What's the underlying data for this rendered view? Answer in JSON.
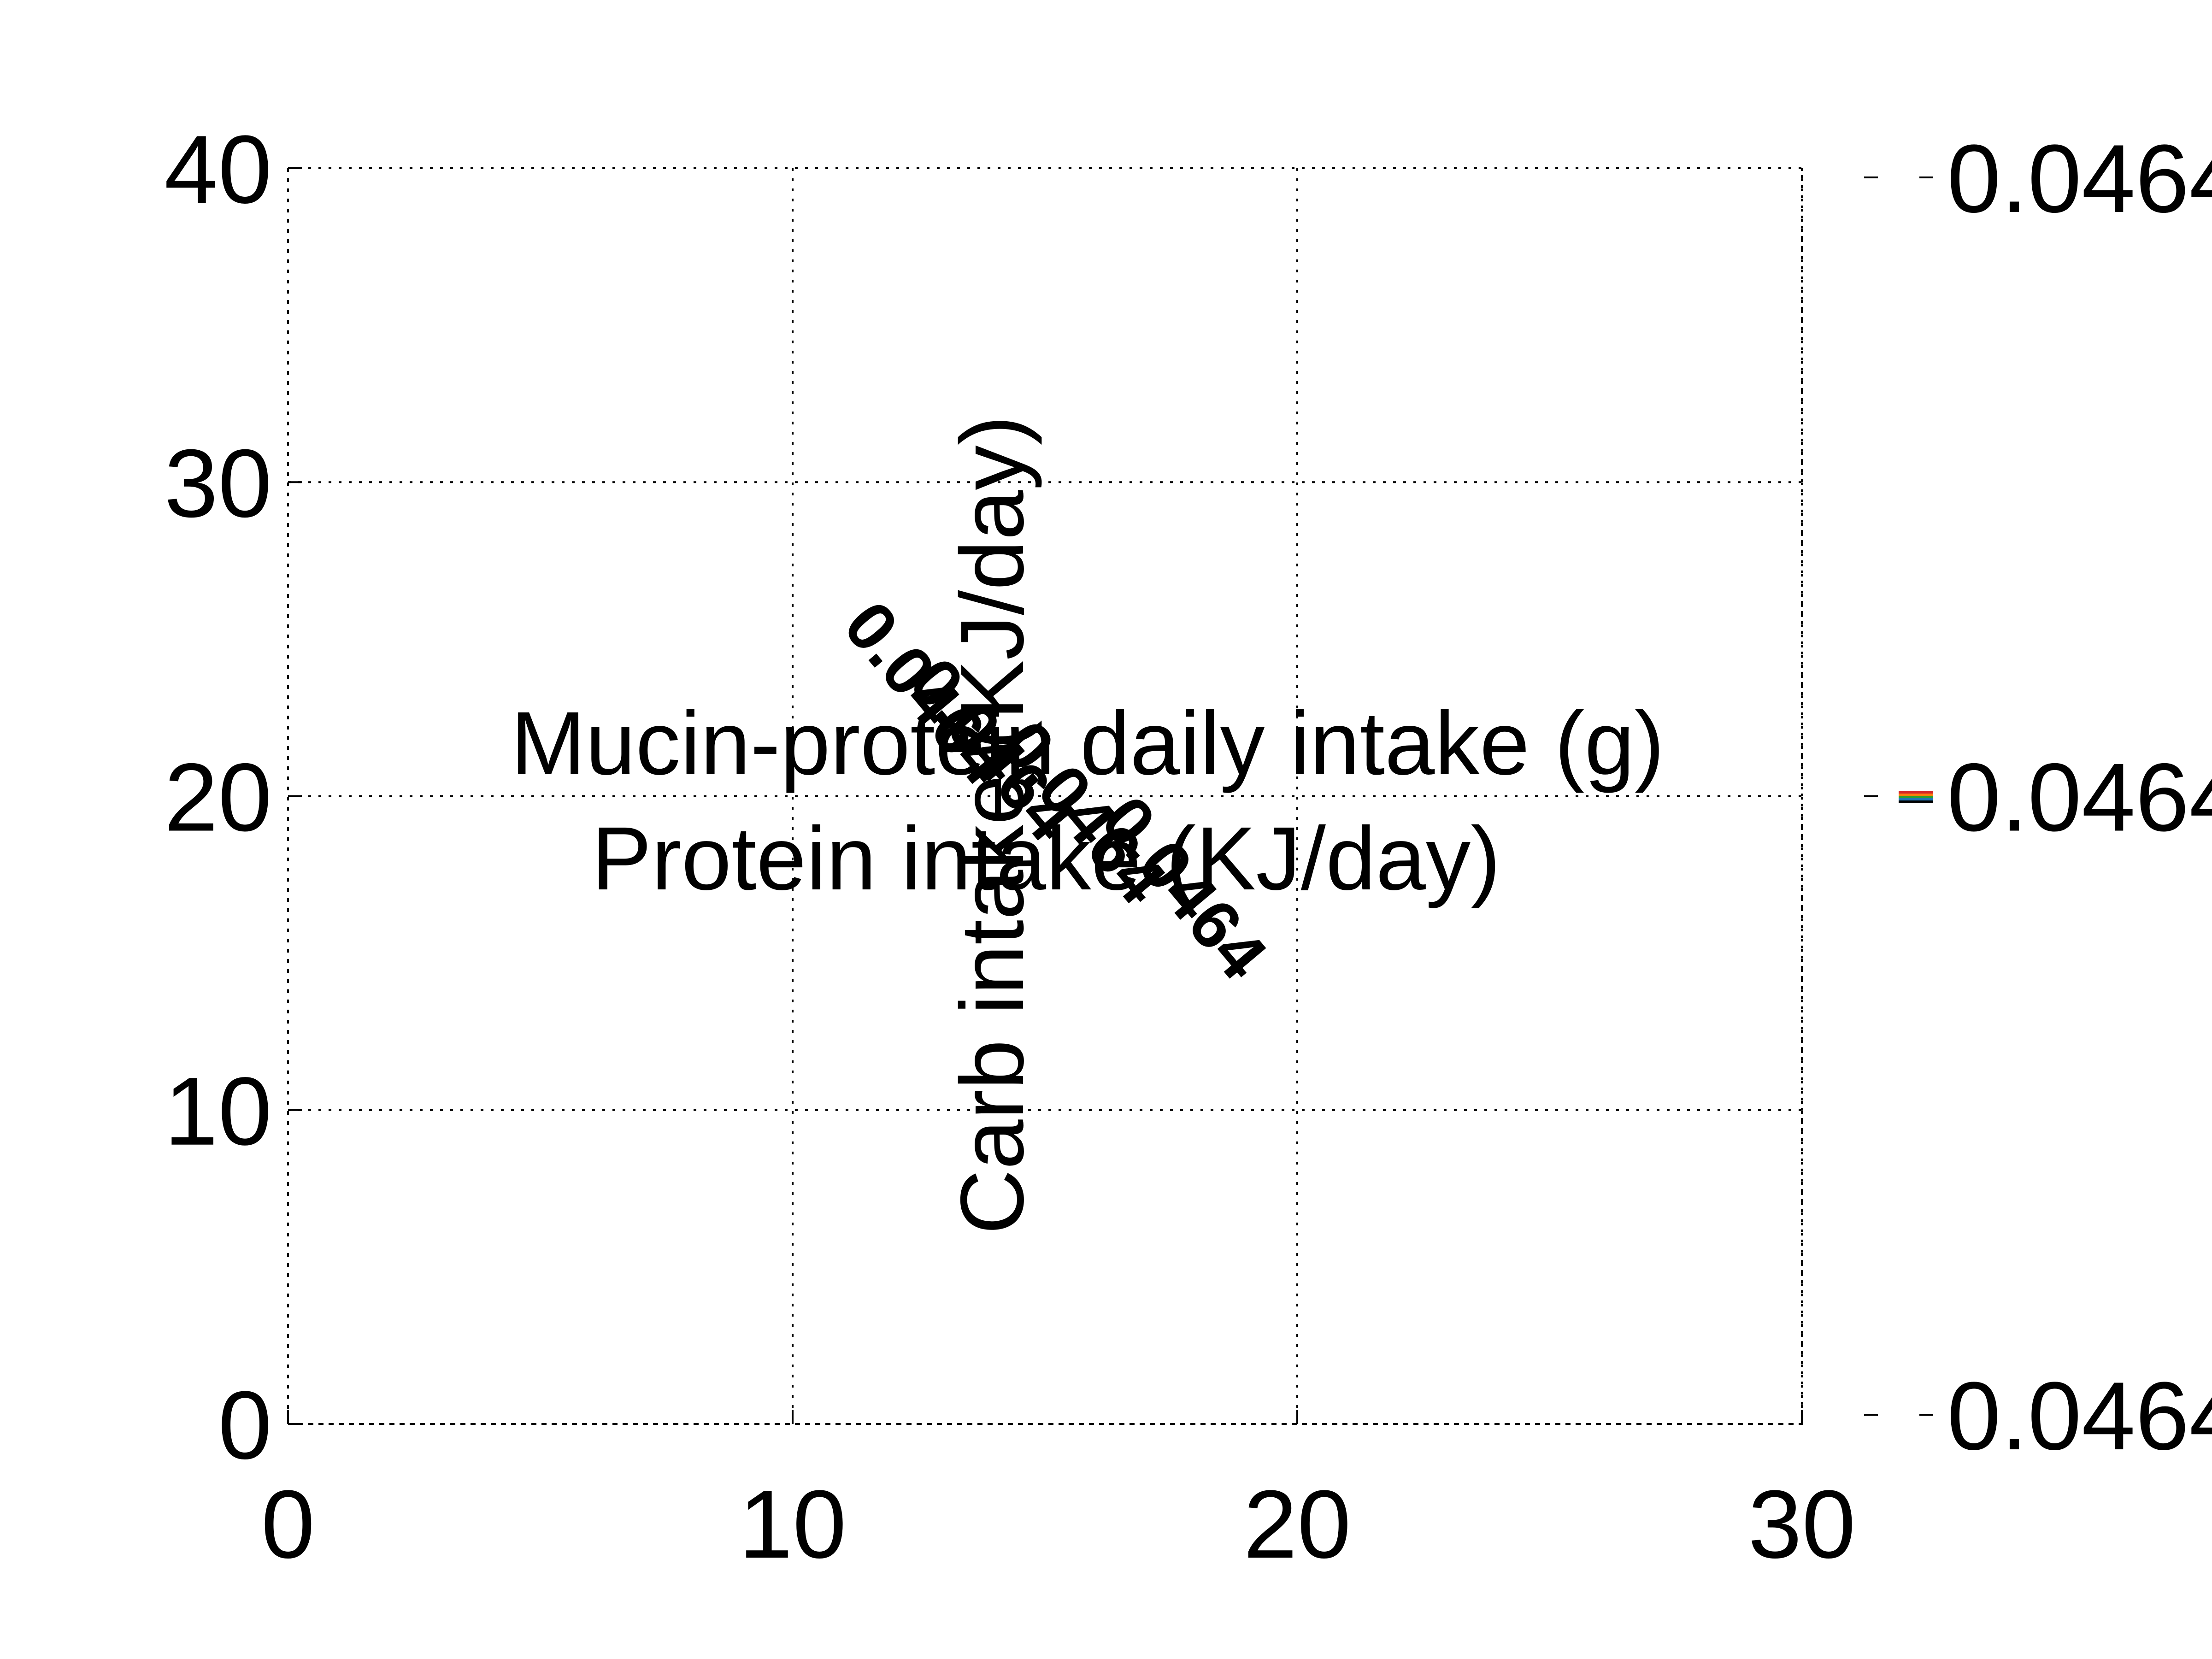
{
  "chart_data": {
    "type": "contour",
    "xlabel": "Protein intake (KJ/day)",
    "ylabel": "Carb intake (KJ/day)",
    "colorbar_label": "Mucin-protein daily intake (g)",
    "xlim": [
      0,
      30
    ],
    "ylim": [
      0,
      40
    ],
    "x_ticks": [
      {
        "value": 0,
        "label": "0"
      },
      {
        "value": 10,
        "label": "10"
      },
      {
        "value": 20,
        "label": "20"
      },
      {
        "value": 30,
        "label": "30"
      }
    ],
    "y_ticks": [
      {
        "value": 0,
        "label": "0"
      },
      {
        "value": 10,
        "label": "10"
      },
      {
        "value": 20,
        "label": "20"
      },
      {
        "value": 30,
        "label": "30"
      },
      {
        "value": 40,
        "label": "40"
      }
    ],
    "colorbar_ticks": [
      {
        "level": 1.0,
        "label": "0.0464"
      },
      {
        "level": 0.5,
        "label": "0.0464"
      },
      {
        "level": 0.0,
        "label": "0.0464"
      }
    ],
    "grid": true,
    "contour_labels": [
      "0.0464",
      "0.0464",
      "0.0464",
      "0.0464"
    ],
    "contour_label_path": [
      {
        "x": 12.3,
        "y": 22.8
      },
      {
        "x": 13.6,
        "y": 21.0
      },
      {
        "x": 15.4,
        "y": 19.0
      },
      {
        "x": 17.4,
        "y": 16.6
      }
    ],
    "colorbar_level_colors": [
      "#d62728",
      "#ff7f0e",
      "#2ca02c",
      "#1f77b4",
      "#000000"
    ]
  }
}
